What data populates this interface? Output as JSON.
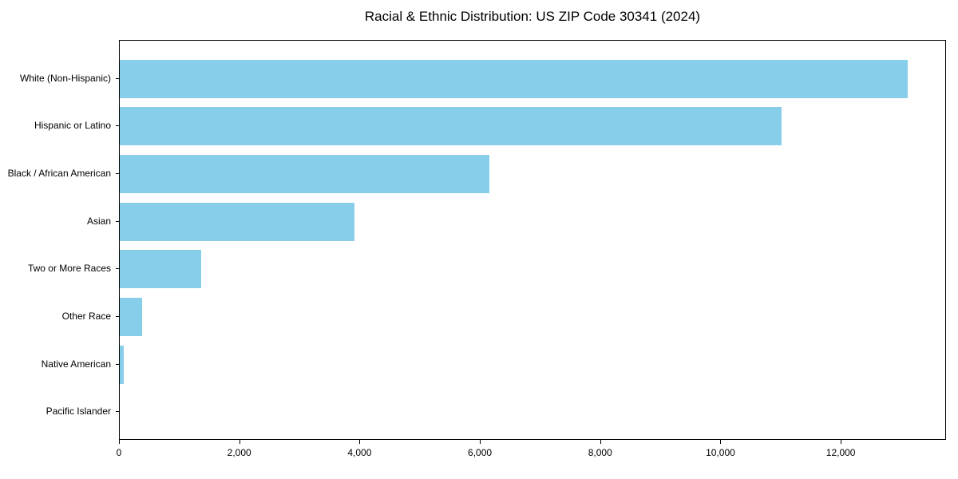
{
  "chart_data": {
    "type": "bar",
    "orientation": "horizontal",
    "title": "Racial & Ethnic Distribution: US ZIP Code 30341 (2024)",
    "categories": [
      "White (Non-Hispanic)",
      "Hispanic or Latino",
      "Black / African American",
      "Asian",
      "Two or More Races",
      "Other Race",
      "Native American",
      "Pacific Islander"
    ],
    "values": [
      13100,
      11000,
      6150,
      3900,
      1350,
      375,
      60,
      0
    ],
    "xlabel": "",
    "ylabel": "",
    "xlim": [
      0,
      13750
    ],
    "xticks": [
      0,
      2000,
      4000,
      6000,
      8000,
      10000,
      12000
    ],
    "xtick_labels": [
      "0",
      "2,000",
      "4,000",
      "6,000",
      "8,000",
      "10,000",
      "12,000"
    ],
    "bar_color": "#87CEEB",
    "background_color": "#ffffff",
    "spine_color": "#000000",
    "grid": false,
    "legend": null
  }
}
